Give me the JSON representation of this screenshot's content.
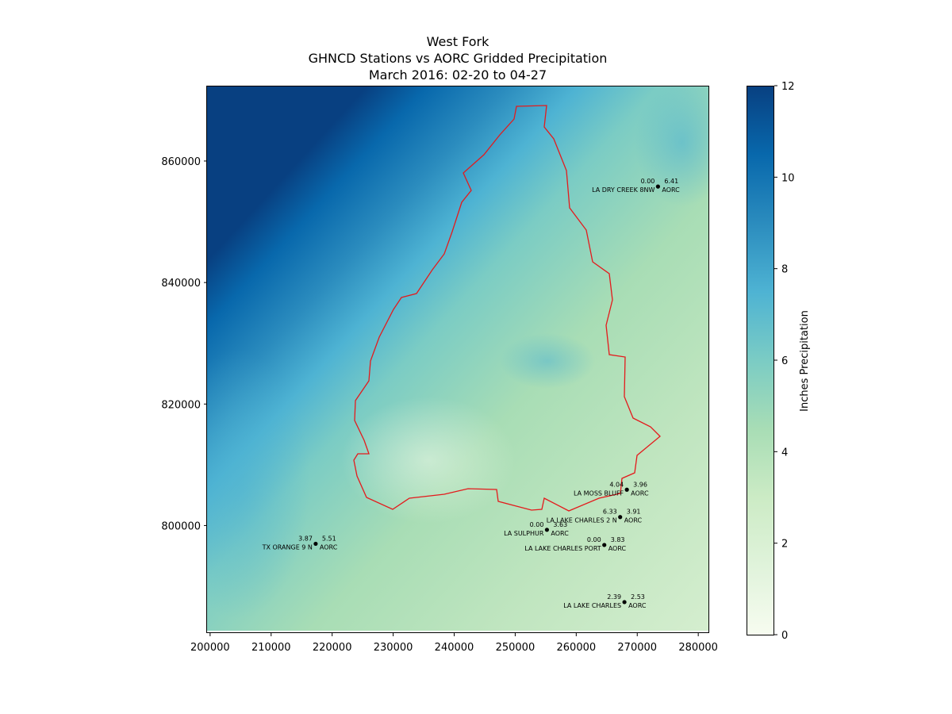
{
  "title": {
    "line1": "West Fork",
    "line2": "GHNCD Stations vs AORC Gridded Precipitation",
    "line3": "March 2016: 02-20 to 04-27"
  },
  "map": {
    "x_range": [
      199500,
      281800
    ],
    "y_range": [
      782300,
      872400
    ],
    "x_ticks": [
      200000,
      210000,
      220000,
      230000,
      240000,
      250000,
      260000,
      270000,
      280000
    ],
    "y_ticks": [
      800000,
      820000,
      840000,
      860000
    ],
    "boundary_color": "#e41a1c",
    "stations": [
      {
        "name": "LA DRY CREEK 8NW",
        "x": 273400,
        "y": 855800,
        "ghcnd": "0.00",
        "aorc": "6.41",
        "aorc_label": "AORC"
      },
      {
        "name": "LA MOSS BLUFF",
        "x": 268300,
        "y": 805900,
        "ghcnd": "4.04",
        "aorc": "3.96",
        "aorc_label": "AORC"
      },
      {
        "name": "LA LAKE CHARLES 2 N",
        "x": 267200,
        "y": 801400,
        "ghcnd": "6.33",
        "aorc": "3.91",
        "aorc_label": "AORC"
      },
      {
        "name": "LA SULPHUR",
        "x": 255200,
        "y": 799300,
        "ghcnd": "0.00",
        "aorc": "3.63",
        "aorc_label": "AORC"
      },
      {
        "name": "TX ORANGE 9 N",
        "x": 217300,
        "y": 797000,
        "ghcnd": "3.87",
        "aorc": "5.51",
        "aorc_label": "AORC"
      },
      {
        "name": "LA LAKE CHARLES PORT",
        "x": 264600,
        "y": 796800,
        "ghcnd": "0.00",
        "aorc": "3.83",
        "aorc_label": "AORC"
      },
      {
        "name": "LA LAKE CHARLES",
        "x": 267900,
        "y": 787400,
        "ghcnd": "2.39",
        "aorc": "2.53",
        "aorc_label": "AORC"
      }
    ]
  },
  "colorbar": {
    "label": "Inches Precipitation",
    "min": 0,
    "max": 12,
    "ticks": [
      0,
      2,
      4,
      6,
      8,
      10,
      12
    ],
    "colors": [
      "#f7fcf0",
      "#e0f3db",
      "#ccebc5",
      "#a8ddb5",
      "#7bccc4",
      "#4eb3d3",
      "#2b8cbe",
      "#0868ac",
      "#084081"
    ]
  }
}
